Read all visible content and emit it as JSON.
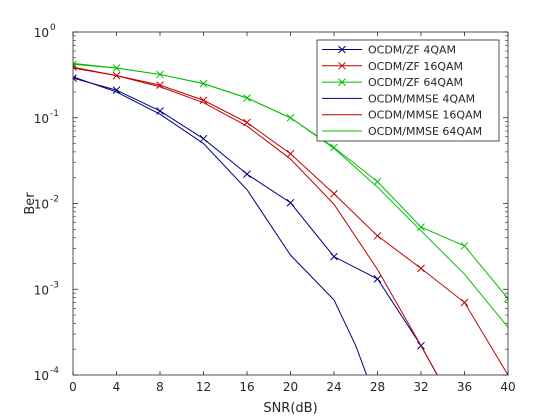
{
  "chart_data": {
    "type": "line",
    "title": "",
    "xlabel": "SNR(dB)",
    "ylabel": "Ber",
    "xlim": [
      0,
      40
    ],
    "ylim": [
      0.0001,
      1
    ],
    "yscale": "log",
    "grid": false,
    "legend_position": "top-right",
    "x_ticks": [
      0,
      4,
      8,
      12,
      16,
      20,
      24,
      28,
      32,
      36,
      40
    ],
    "x_tick_labels": [
      "0",
      "4",
      "8",
      "12",
      "16",
      "20",
      "24",
      "28",
      "32",
      "36",
      "40"
    ],
    "y_ticks": [
      0.0001,
      0.001,
      0.01,
      0.1,
      1
    ],
    "y_tick_labels": [
      {
        "base": "10",
        "exp": "-4"
      },
      {
        "base": "10",
        "exp": "-3"
      },
      {
        "base": "10",
        "exp": "-2"
      },
      {
        "base": "10",
        "exp": "-1"
      },
      {
        "base": "10",
        "exp": "0"
      }
    ],
    "series": [
      {
        "name": "OCDM/ZF 4QAM",
        "color": "#000080",
        "marker": "x",
        "x": [
          0,
          4,
          8,
          12,
          16,
          20,
          24,
          28,
          32,
          33.5
        ],
        "y": [
          0.29,
          0.21,
          0.12,
          0.057,
          0.022,
          0.0102,
          0.0024,
          0.00132,
          0.00022,
          0.0001
        ]
      },
      {
        "name": "OCDM/ZF 16QAM",
        "color": "#c00000",
        "marker": "x",
        "x": [
          0,
          4,
          8,
          12,
          16,
          20,
          24,
          28,
          32,
          36,
          40
        ],
        "y": [
          0.39,
          0.31,
          0.24,
          0.16,
          0.088,
          0.038,
          0.013,
          0.0042,
          0.00175,
          0.0007,
          0.0001
        ]
      },
      {
        "name": "OCDM/ZF 64QAM",
        "color": "#00c000",
        "marker": "x",
        "x": [
          0,
          4,
          8,
          12,
          16,
          20,
          24,
          28,
          32,
          36,
          40
        ],
        "y": [
          0.42,
          0.38,
          0.32,
          0.25,
          0.17,
          0.1,
          0.045,
          0.018,
          0.0053,
          0.0032,
          0.00078
        ]
      },
      {
        "name": "OCDM/MMSE 4QAM",
        "color": "#000080",
        "marker": "none",
        "x": [
          0,
          4,
          8,
          12,
          16,
          20,
          24,
          26,
          27
        ],
        "y": [
          0.3,
          0.2,
          0.11,
          0.05,
          0.0145,
          0.0025,
          0.00075,
          0.00022,
          0.0001
        ]
      },
      {
        "name": "OCDM/MMSE 16QAM",
        "color": "#c00000",
        "marker": "none",
        "x": [
          0,
          4,
          8,
          12,
          16,
          20,
          24,
          28,
          32,
          33.5
        ],
        "y": [
          0.38,
          0.31,
          0.23,
          0.15,
          0.08,
          0.033,
          0.0098,
          0.0017,
          0.00022,
          0.0001
        ]
      },
      {
        "name": "OCDM/MMSE 64QAM",
        "color": "#00c000",
        "marker": "none",
        "x": [
          0,
          4,
          8,
          12,
          16,
          20,
          24,
          28,
          32,
          36,
          40
        ],
        "y": [
          0.43,
          0.38,
          0.32,
          0.25,
          0.17,
          0.1,
          0.044,
          0.0155,
          0.0048,
          0.0015,
          0.00036
        ]
      }
    ]
  }
}
